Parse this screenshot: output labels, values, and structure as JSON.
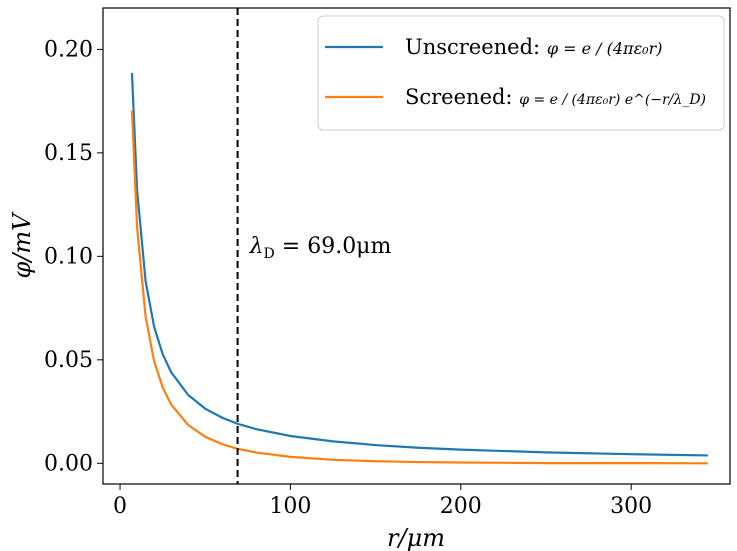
{
  "chart_data": {
    "type": "line",
    "xlabel": "r/μm",
    "ylabel": "φ/mV",
    "xlim": [
      -10,
      358
    ],
    "ylim": [
      -0.01,
      0.22
    ],
    "x_ticks": [
      0,
      100,
      200,
      300
    ],
    "x_tick_labels": [
      "0",
      "100",
      "200",
      "300"
    ],
    "y_ticks": [
      0.0,
      0.05,
      0.1,
      0.15,
      0.2
    ],
    "y_tick_labels": [
      "0.00",
      "0.05",
      "0.10",
      "0.15",
      "0.20"
    ],
    "grid": false,
    "legend_position": "top-right",
    "debye_length_um": 69.0,
    "annotation": {
      "text_main": "λ",
      "text_sub": "D",
      "text_rest": " = 69.0μm"
    },
    "series": [
      {
        "name": "Unscreened",
        "legend_prefix": "Unscreened: ",
        "legend_formula": "φ = e / (4πε₀r)",
        "color": "#1f77b4",
        "x": [
          7,
          10,
          15,
          20,
          25,
          30,
          40,
          50,
          60,
          69,
          80,
          100,
          125,
          150,
          175,
          200,
          250,
          300,
          345
        ],
        "values": [
          0.1886,
          0.132,
          0.088,
          0.066,
          0.0528,
          0.044,
          0.033,
          0.0264,
          0.022,
          0.0191,
          0.0165,
          0.0132,
          0.0106,
          0.0088,
          0.0075,
          0.0066,
          0.0053,
          0.0044,
          0.0038
        ]
      },
      {
        "name": "Screened",
        "legend_prefix": "Screened: ",
        "legend_formula": "φ = e / (4πε₀r) e^(−r/λ_D)",
        "color": "#ff7f0e",
        "x": [
          7,
          10,
          15,
          20,
          25,
          30,
          40,
          50,
          60,
          69,
          80,
          100,
          125,
          150,
          175,
          200,
          250,
          300,
          345
        ],
        "values": [
          0.1704,
          0.114,
          0.0708,
          0.0494,
          0.0367,
          0.0284,
          0.0185,
          0.0128,
          0.0092,
          0.007,
          0.0052,
          0.0031,
          0.0017,
          0.001,
          0.0006,
          0.0004,
          0.0001,
          0.0001,
          0.0
        ]
      }
    ]
  }
}
